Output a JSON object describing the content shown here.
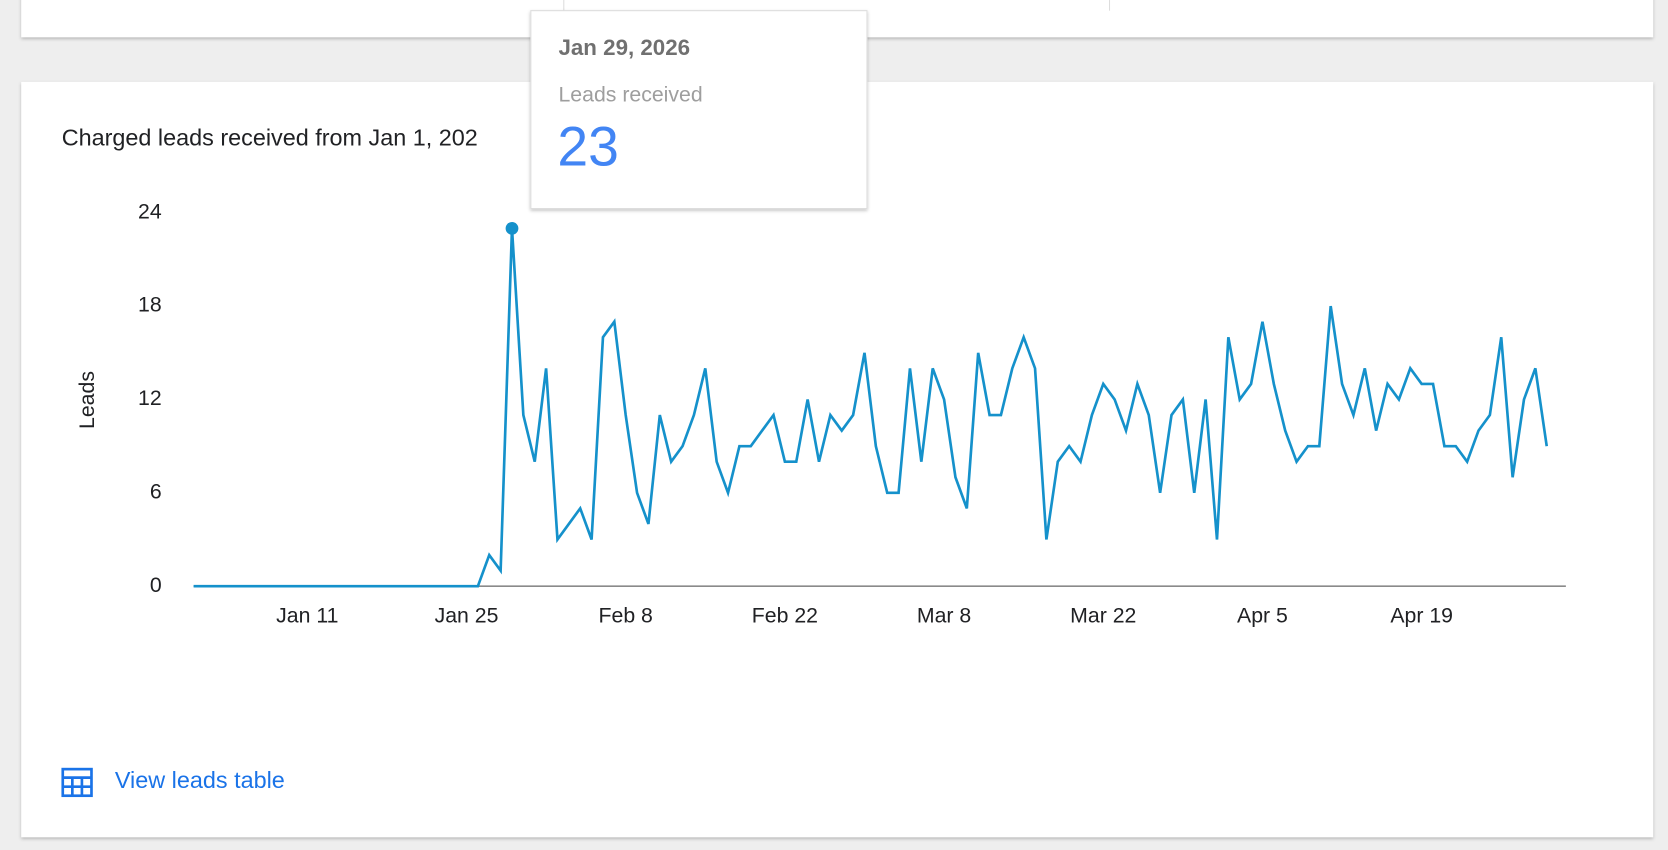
{
  "chart_data": {
    "type": "line",
    "title": "Charged leads received from Jan 1, 202",
    "y_label": "Leads",
    "color": "#1591cb",
    "categories": [
      null,
      null,
      null,
      null,
      null,
      null,
      null,
      null,
      null,
      null,
      "Jan 11",
      null,
      null,
      null,
      null,
      null,
      null,
      null,
      null,
      null,
      null,
      null,
      null,
      null,
      "Jan 25",
      null,
      null,
      null,
      null,
      null,
      null,
      null,
      null,
      null,
      null,
      null,
      null,
      null,
      "Feb 8",
      null,
      null,
      null,
      null,
      null,
      null,
      null,
      null,
      null,
      null,
      null,
      null,
      null,
      "Feb 22",
      null,
      null,
      null,
      null,
      null,
      null,
      null,
      null,
      null,
      null,
      null,
      null,
      null,
      "Mar 8",
      null,
      null,
      null,
      null,
      null,
      null,
      null,
      null,
      null,
      null,
      null,
      null,
      null,
      "Mar 22",
      null,
      null,
      null,
      null,
      null,
      null,
      null,
      null,
      null,
      null,
      null,
      null,
      null,
      "Apr 5",
      null,
      null,
      null,
      null,
      null,
      null,
      null,
      null,
      null,
      null,
      null,
      null,
      null,
      "Apr 19",
      null,
      null,
      null,
      null,
      null,
      null,
      null,
      null,
      null,
      null,
      null
    ],
    "values": [
      0,
      0,
      0,
      0,
      0,
      0,
      0,
      0,
      0,
      0,
      0,
      0,
      0,
      0,
      0,
      0,
      0,
      0,
      0,
      0,
      0,
      0,
      0,
      0,
      0,
      0,
      2,
      1,
      23,
      11,
      8,
      14,
      3,
      4,
      5,
      3,
      16,
      17,
      11,
      6,
      4,
      11,
      8,
      9,
      11,
      14,
      8,
      6,
      9,
      9,
      10,
      11,
      8,
      8,
      12,
      8,
      11,
      10,
      11,
      15,
      9,
      6,
      6,
      14,
      8,
      14,
      12,
      7,
      5,
      15,
      11,
      11,
      14,
      16,
      14,
      3,
      8,
      9,
      8,
      11,
      13,
      12,
      10,
      13,
      11,
      6,
      11,
      12,
      6,
      12,
      3,
      16,
      12,
      13,
      17,
      13,
      10,
      8,
      9,
      9,
      18,
      13,
      11,
      14,
      10,
      13,
      12,
      14,
      13,
      13,
      9,
      9,
      8,
      10,
      11,
      16,
      7,
      12,
      14,
      9
    ],
    "ylim": [
      0,
      24
    ],
    "yticks": [
      0,
      6,
      12,
      18,
      24
    ],
    "tooltip": {
      "date": "Jan 29, 2026",
      "label": "Leads received",
      "value": 23
    }
  },
  "link": {
    "text": "View leads table"
  }
}
